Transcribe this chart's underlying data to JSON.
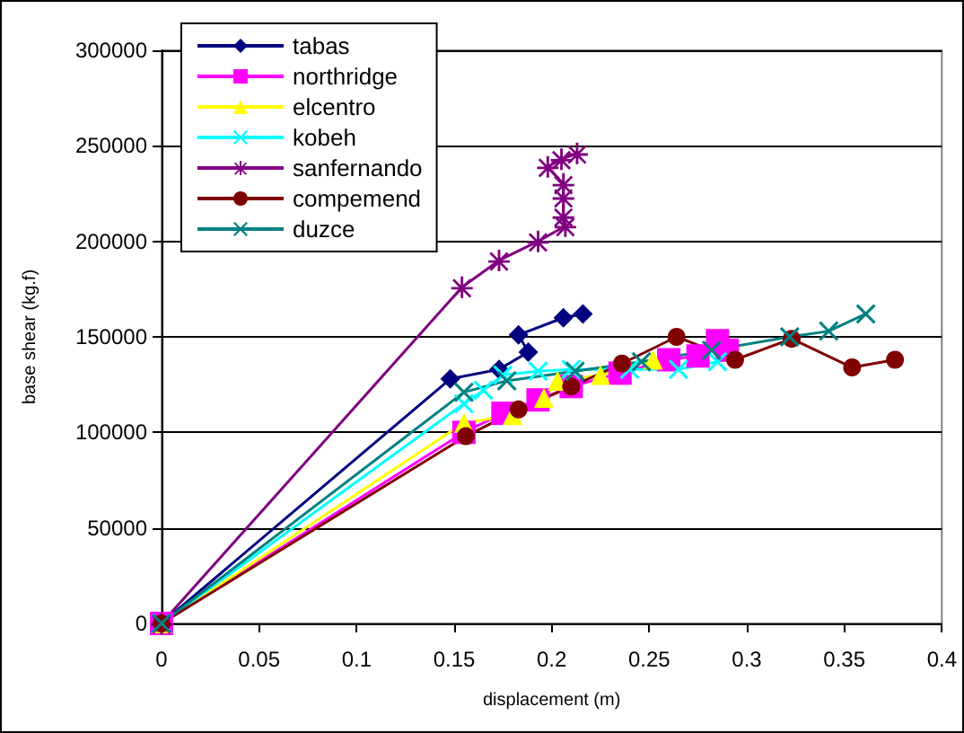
{
  "chart_data": {
    "type": "line",
    "xlabel": "displacement (m)",
    "ylabel": "base shear (kg.f)",
    "xlim": [
      0,
      0.4
    ],
    "xticks": [
      0,
      0.05,
      0.1,
      0.15,
      0.2,
      0.25,
      0.3,
      0.35,
      0.4
    ],
    "ylim": [
      0,
      300000
    ],
    "yticks": [
      0,
      50000,
      100000,
      150000,
      200000,
      250000,
      300000
    ],
    "grid": "y",
    "legend": "top left",
    "series": [
      {
        "name": "tabas",
        "color": "#000080",
        "marker": "diamond",
        "x": [
          0,
          0.148,
          0.173,
          0.188,
          0.183,
          0.206,
          0.216
        ],
        "values": [
          0,
          128000,
          133000,
          142000,
          151000,
          160000,
          162000
        ]
      },
      {
        "name": "northridge",
        "color": "#ff00ff",
        "marker": "square",
        "x": [
          0,
          0.155,
          0.175,
          0.193,
          0.21,
          0.235,
          0.26,
          0.275,
          0.285,
          0.29
        ],
        "values": [
          0,
          100000,
          110000,
          117000,
          124000,
          131000,
          138000,
          140000,
          148000,
          143000
        ]
      },
      {
        "name": "elcentro",
        "color": "#ffff00",
        "marker": "triangle",
        "x": [
          0,
          0.155,
          0.18,
          0.196,
          0.203,
          0.225,
          0.252
        ],
        "values": [
          0,
          105000,
          109000,
          118000,
          127000,
          130000,
          138000
        ]
      },
      {
        "name": "kobeh",
        "color": "#00ffff",
        "marker": "cross",
        "x": [
          0,
          0.155,
          0.165,
          0.175,
          0.193,
          0.21,
          0.24,
          0.265,
          0.285
        ],
        "values": [
          0,
          115000,
          122000,
          130000,
          132000,
          133000,
          133000,
          133000,
          137000
        ]
      },
      {
        "name": "sanfernando",
        "color": "#800080",
        "marker": "star",
        "x": [
          0,
          0.154,
          0.173,
          0.193,
          0.207,
          0.206,
          0.206,
          0.206,
          0.198,
          0.205,
          0.213
        ],
        "values": [
          0,
          176000,
          190000,
          200000,
          208000,
          213000,
          223000,
          230000,
          239000,
          243000,
          246000
        ]
      },
      {
        "name": "compemend",
        "color": "#800000",
        "marker": "circle",
        "x": [
          0,
          0.156,
          0.183,
          0.21,
          0.236,
          0.264,
          0.294,
          0.323,
          0.354,
          0.376
        ],
        "values": [
          0,
          98000,
          112000,
          124000,
          136000,
          150000,
          138000,
          149000,
          134000,
          138000
        ]
      },
      {
        "name": "duzce",
        "color": "#008080",
        "marker": "cross",
        "x": [
          0,
          0.155,
          0.177,
          0.212,
          0.246,
          0.282,
          0.322,
          0.342,
          0.361
        ],
        "values": [
          0,
          121000,
          127000,
          132000,
          137000,
          143000,
          150000,
          153000,
          162000
        ]
      }
    ]
  }
}
